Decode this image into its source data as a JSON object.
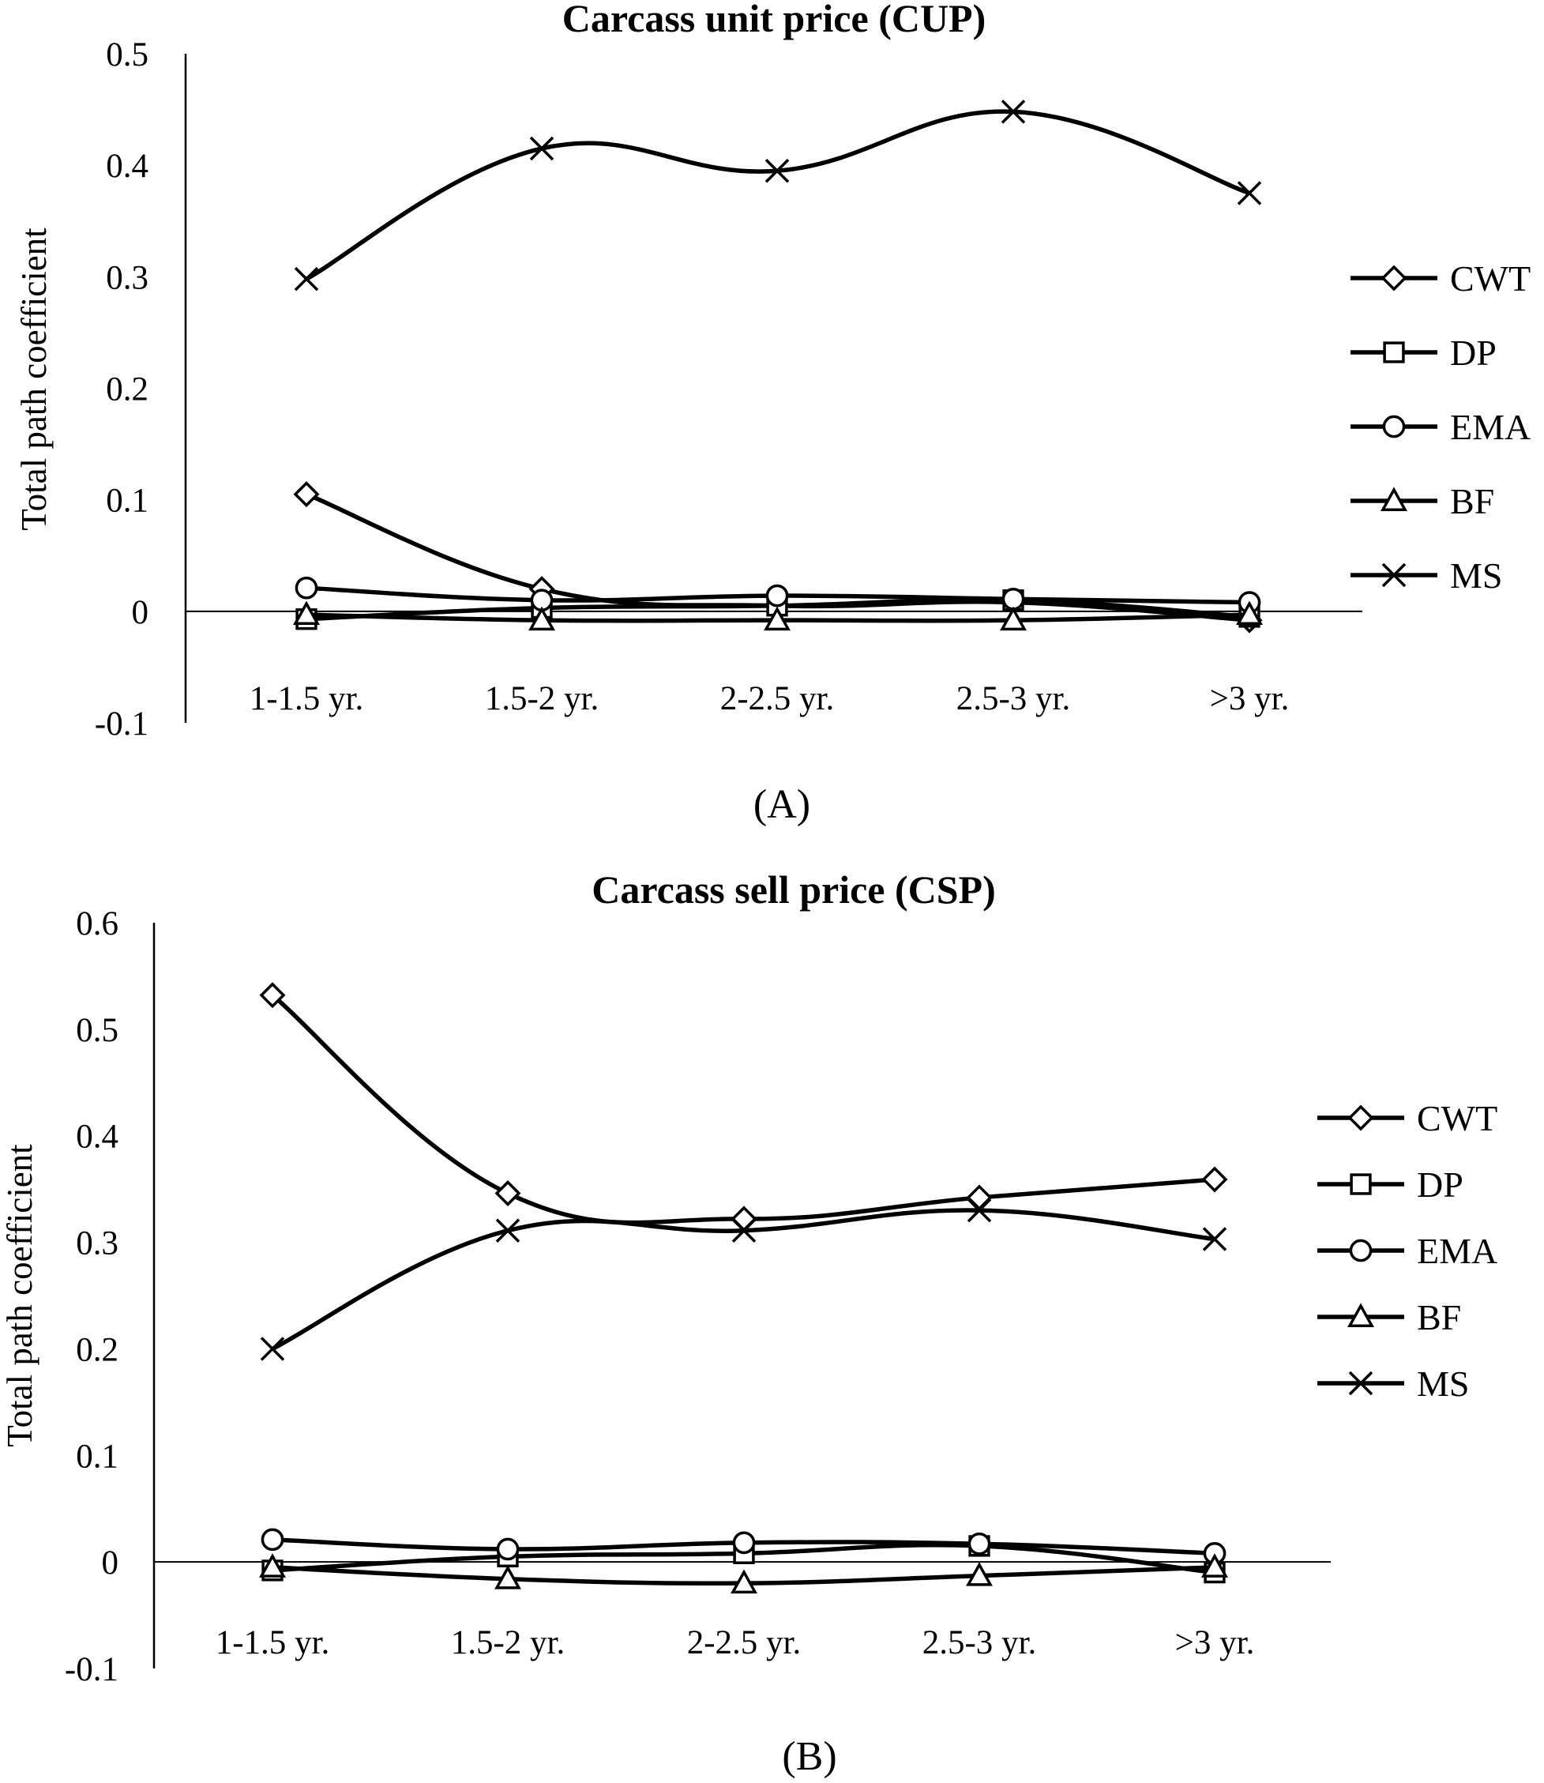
{
  "chart_data": [
    {
      "type": "line",
      "panel_label": "(A)",
      "title": "Carcass unit price (CUP)",
      "xlabel": "",
      "ylabel": "Total path coefficient",
      "categories": [
        "1-1.5 yr.",
        "1.5-2 yr.",
        "2-2.5 yr.",
        "2.5-3 yr.",
        ">3 yr."
      ],
      "ylim": [
        -0.1,
        0.5
      ],
      "yticks": [
        "0.5",
        "0.4",
        "0.3",
        "0.2",
        "0.1",
        "0",
        "-0.1"
      ],
      "grid": false,
      "legend_position": "right",
      "series": [
        {
          "name": "CWT",
          "marker": "diamond",
          "values": [
            0.105,
            0.02,
            0.005,
            0.008,
            -0.008
          ]
        },
        {
          "name": "DP",
          "marker": "square",
          "values": [
            -0.007,
            0.003,
            0.005,
            0.01,
            -0.005
          ]
        },
        {
          "name": "EMA",
          "marker": "circle",
          "values": [
            0.021,
            0.01,
            0.014,
            0.011,
            0.008
          ]
        },
        {
          "name": "BF",
          "marker": "triangle",
          "values": [
            -0.003,
            -0.008,
            -0.008,
            -0.008,
            -0.003
          ]
        },
        {
          "name": "MS",
          "marker": "x",
          "values": [
            0.298,
            0.415,
            0.395,
            0.448,
            0.375
          ]
        }
      ]
    },
    {
      "type": "line",
      "panel_label": "(B)",
      "title": "Carcass sell price (CSP)",
      "xlabel": "",
      "ylabel": "Total path coefficient",
      "categories": [
        "1-1.5 yr.",
        "1.5-2 yr.",
        "2-2.5 yr.",
        "2.5-3 yr.",
        ">3 yr."
      ],
      "ylim": [
        -0.1,
        0.6
      ],
      "yticks": [
        "0.6",
        "0.5",
        "0.4",
        "0.3",
        "0.2",
        "0.1",
        "0",
        "-0.1"
      ],
      "grid": false,
      "legend_position": "right",
      "series": [
        {
          "name": "CWT",
          "marker": "diamond",
          "values": [
            0.532,
            0.346,
            0.322,
            0.342,
            0.359
          ]
        },
        {
          "name": "DP",
          "marker": "square",
          "values": [
            -0.008,
            0.005,
            0.008,
            0.015,
            -0.01
          ]
        },
        {
          "name": "EMA",
          "marker": "circle",
          "values": [
            0.021,
            0.012,
            0.018,
            0.017,
            0.008
          ]
        },
        {
          "name": "BF",
          "marker": "triangle",
          "values": [
            -0.005,
            -0.016,
            -0.02,
            -0.013,
            -0.005
          ]
        },
        {
          "name": "MS",
          "marker": "x",
          "values": [
            0.2,
            0.311,
            0.311,
            0.33,
            0.303
          ]
        }
      ]
    }
  ]
}
